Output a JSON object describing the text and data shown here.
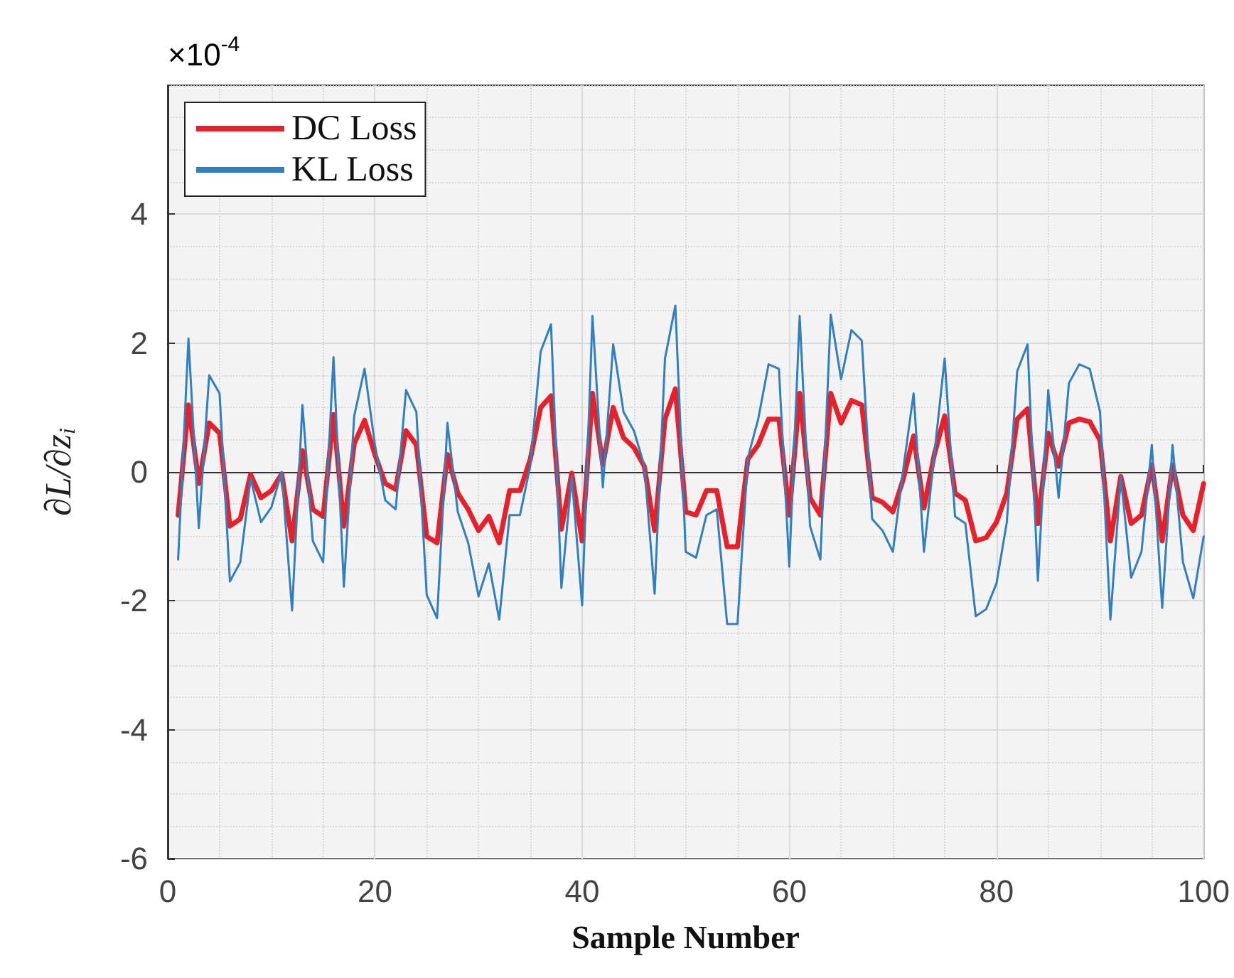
{
  "chart_data": {
    "type": "line",
    "xlabel": "Sample Number",
    "ylabel": "∂L/∂z$_{i}$",
    "annotations": [
      "×10$^{-4}$"
    ],
    "x": [
      1,
      2,
      3,
      4,
      5,
      6,
      7,
      8,
      9,
      10,
      11,
      12,
      13,
      14,
      15,
      16,
      17,
      18,
      19,
      20,
      21,
      22,
      23,
      24,
      25,
      26,
      27,
      28,
      29,
      30,
      31,
      32,
      33,
      34,
      35,
      36,
      37,
      38,
      39,
      40,
      41,
      42,
      43,
      44,
      45,
      46,
      47,
      48,
      49,
      50,
      51,
      52,
      53,
      54,
      55,
      56,
      57,
      58,
      59,
      60,
      61,
      62,
      63,
      64,
      65,
      66,
      67,
      68,
      69,
      70,
      71,
      72,
      73,
      74,
      75,
      76,
      77,
      78,
      79,
      80,
      81,
      82,
      83,
      84,
      85,
      86,
      87,
      88,
      89,
      90,
      91,
      92,
      93,
      94,
      95,
      96,
      97,
      98,
      99,
      100
    ],
    "series": [
      {
        "name": "DC Loss",
        "color": "#e8202a",
        "values": [
          -0.67,
          1.04,
          -0.18,
          0.76,
          0.6,
          -0.84,
          -0.73,
          -0.04,
          -0.4,
          -0.29,
          -0.03,
          -1.07,
          0.33,
          -0.58,
          -0.69,
          0.89,
          -0.84,
          0.44,
          0.8,
          0.27,
          -0.18,
          -0.27,
          0.64,
          0.42,
          -1.0,
          -1.1,
          0.27,
          -0.33,
          -0.58,
          -0.91,
          -0.69,
          -1.1,
          -0.29,
          -0.29,
          0.2,
          1.0,
          1.18,
          -0.89,
          -0.02,
          -1.07,
          1.22,
          0.11,
          1.0,
          0.53,
          0.38,
          0.09,
          -0.91,
          0.82,
          1.29,
          -0.62,
          -0.67,
          -0.29,
          -0.29,
          -1.16,
          -1.16,
          0.2,
          0.42,
          0.82,
          0.82,
          -0.67,
          1.22,
          -0.4,
          -0.67,
          1.22,
          0.76,
          1.11,
          1.04,
          -0.4,
          -0.47,
          -0.62,
          -0.11,
          0.56,
          -0.56,
          0.27,
          0.87,
          -0.33,
          -0.44,
          -1.07,
          -1.02,
          -0.78,
          -0.33,
          0.82,
          0.98,
          -0.8,
          0.6,
          0.09,
          0.76,
          0.82,
          0.78,
          0.49,
          -1.07,
          -0.07,
          -0.8,
          -0.67,
          0.11,
          -1.07,
          0.11,
          -0.67,
          -0.91,
          -0.18
        ]
      },
      {
        "name": "KL Loss",
        "color": "#2f7fc1",
        "values": [
          -1.36,
          2.07,
          -0.87,
          1.5,
          1.22,
          -1.7,
          -1.4,
          -0.1,
          -0.78,
          -0.55,
          0.0,
          -2.15,
          1.04,
          -1.07,
          -1.4,
          1.78,
          -1.78,
          0.87,
          1.6,
          0.42,
          -0.44,
          -0.58,
          1.27,
          0.93,
          -1.91,
          -2.27,
          0.76,
          -0.62,
          -1.1,
          -1.93,
          -1.42,
          -2.29,
          -0.67,
          -0.67,
          0.1,
          1.87,
          2.29,
          -1.8,
          -0.07,
          -2.07,
          2.42,
          -0.24,
          1.98,
          0.93,
          0.64,
          0.1,
          -1.89,
          1.76,
          2.58,
          -1.24,
          -1.33,
          -0.67,
          -0.58,
          -2.36,
          -2.36,
          0.22,
          0.82,
          1.67,
          1.6,
          -1.47,
          2.42,
          -0.84,
          -1.36,
          2.44,
          1.44,
          2.2,
          2.04,
          -0.73,
          -0.91,
          -1.24,
          0.04,
          1.22,
          -1.24,
          0.27,
          1.76,
          -0.69,
          -0.8,
          -2.24,
          -2.13,
          -1.73,
          -0.78,
          1.56,
          1.98,
          -1.69,
          1.27,
          -0.4,
          1.38,
          1.67,
          1.6,
          0.93,
          -2.29,
          -0.07,
          -1.64,
          -1.24,
          0.42,
          -2.11,
          0.42,
          -1.4,
          -1.96,
          -1.0
        ]
      }
    ],
    "xlim": [
      0,
      100
    ],
    "xticks": [
      0,
      20,
      40,
      60,
      80,
      100
    ],
    "ylim": [
      -6,
      6
    ],
    "yticks": [
      -6,
      -4,
      -2,
      0,
      2,
      4
    ],
    "grid": true,
    "legend": "top left",
    "marker": "none",
    "line_style": "solid"
  }
}
